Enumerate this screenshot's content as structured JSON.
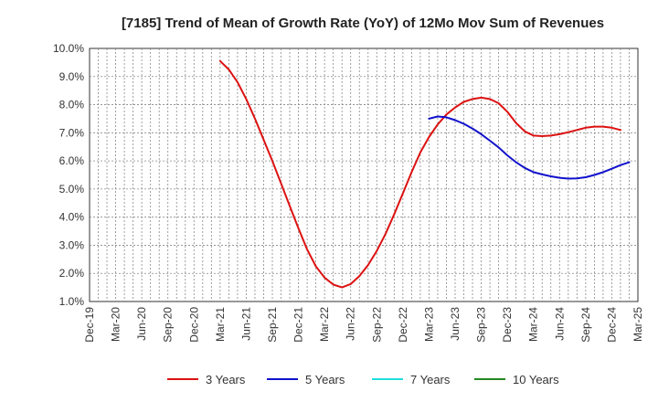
{
  "chart_data": {
    "type": "line",
    "title": "[7185]  Trend of Mean of Growth Rate (YoY) of 12Mo Mov Sum of Revenues",
    "xlabel": "",
    "ylabel": "",
    "ylim": [
      1.0,
      10.0
    ],
    "y_ticks": [
      1.0,
      2.0,
      3.0,
      4.0,
      5.0,
      6.0,
      7.0,
      8.0,
      9.0,
      10.0
    ],
    "y_tick_labels": [
      "1.0%",
      "2.0%",
      "3.0%",
      "4.0%",
      "5.0%",
      "6.0%",
      "7.0%",
      "8.0%",
      "9.0%",
      "10.0%"
    ],
    "x_tick_labels": [
      "Dec-19",
      "Mar-20",
      "Jun-20",
      "Sep-20",
      "Dec-20",
      "Mar-21",
      "Jun-21",
      "Sep-21",
      "Dec-21",
      "Mar-22",
      "Jun-22",
      "Sep-22",
      "Dec-22",
      "Mar-23",
      "Jun-23",
      "Sep-23",
      "Dec-23",
      "Mar-24",
      "Jun-24",
      "Sep-24",
      "Dec-24",
      "Mar-25"
    ],
    "grid": true,
    "legend_position": "bottom",
    "series": [
      {
        "name": "3 Years",
        "color": "#dd1111",
        "points": [
          [
            15,
            9.55
          ],
          [
            16,
            9.25
          ],
          [
            17,
            8.8
          ],
          [
            18,
            8.2
          ],
          [
            19,
            7.5
          ],
          [
            20,
            6.75
          ],
          [
            21,
            6.0
          ],
          [
            22,
            5.2
          ],
          [
            23,
            4.4
          ],
          [
            24,
            3.6
          ],
          [
            25,
            2.85
          ],
          [
            26,
            2.25
          ],
          [
            27,
            1.85
          ],
          [
            28,
            1.6
          ],
          [
            29,
            1.5
          ],
          [
            30,
            1.62
          ],
          [
            31,
            1.9
          ],
          [
            32,
            2.3
          ],
          [
            33,
            2.8
          ],
          [
            34,
            3.4
          ],
          [
            35,
            4.1
          ],
          [
            36,
            4.85
          ],
          [
            37,
            5.6
          ],
          [
            38,
            6.3
          ],
          [
            39,
            6.85
          ],
          [
            40,
            7.3
          ],
          [
            41,
            7.65
          ],
          [
            42,
            7.9
          ],
          [
            43,
            8.1
          ],
          [
            44,
            8.2
          ],
          [
            45,
            8.25
          ],
          [
            46,
            8.2
          ],
          [
            47,
            8.05
          ],
          [
            48,
            7.75
          ],
          [
            49,
            7.35
          ],
          [
            50,
            7.05
          ],
          [
            51,
            6.9
          ],
          [
            52,
            6.88
          ],
          [
            53,
            6.9
          ],
          [
            54,
            6.95
          ],
          [
            55,
            7.02
          ],
          [
            56,
            7.1
          ],
          [
            57,
            7.18
          ],
          [
            58,
            7.22
          ],
          [
            59,
            7.22
          ],
          [
            60,
            7.18
          ],
          [
            61,
            7.1
          ]
        ]
      },
      {
        "name": "5 Years",
        "color": "#1111cc",
        "points": [
          [
            39,
            7.5
          ],
          [
            40,
            7.58
          ],
          [
            41,
            7.55
          ],
          [
            42,
            7.45
          ],
          [
            43,
            7.32
          ],
          [
            44,
            7.15
          ],
          [
            45,
            6.95
          ],
          [
            46,
            6.72
          ],
          [
            47,
            6.48
          ],
          [
            48,
            6.2
          ],
          [
            49,
            5.95
          ],
          [
            50,
            5.75
          ],
          [
            51,
            5.6
          ],
          [
            52,
            5.52
          ],
          [
            53,
            5.45
          ],
          [
            54,
            5.4
          ],
          [
            55,
            5.37
          ],
          [
            56,
            5.38
          ],
          [
            57,
            5.42
          ],
          [
            58,
            5.5
          ],
          [
            59,
            5.6
          ],
          [
            60,
            5.72
          ],
          [
            61,
            5.85
          ],
          [
            62,
            5.95
          ]
        ]
      },
      {
        "name": "7 Years",
        "color": "#22dddd",
        "points": []
      },
      {
        "name": "10 Years",
        "color": "#228822",
        "points": []
      }
    ]
  }
}
